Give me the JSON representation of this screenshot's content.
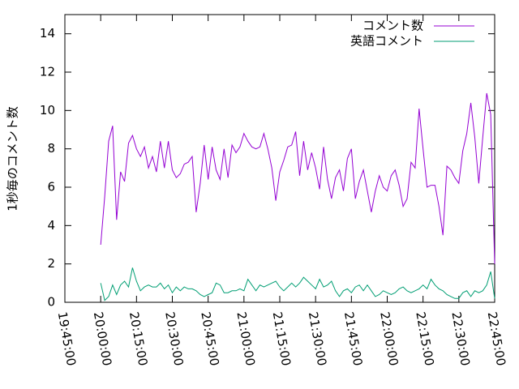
{
  "chart_data": {
    "type": "line",
    "ylabel": "1秒毎のコメント数",
    "x": [
      "20:00:00",
      "20:01:40",
      "20:03:20",
      "20:05:00",
      "20:06:40",
      "20:08:20",
      "20:10:00",
      "20:11:40",
      "20:13:20",
      "20:15:00",
      "20:16:40",
      "20:18:20",
      "20:20:00",
      "20:21:40",
      "20:23:20",
      "20:25:00",
      "20:26:40",
      "20:28:20",
      "20:30:00",
      "20:31:40",
      "20:33:20",
      "20:35:00",
      "20:36:40",
      "20:38:20",
      "20:40:00",
      "20:41:40",
      "20:43:20",
      "20:45:00",
      "20:46:40",
      "20:48:20",
      "20:50:00",
      "20:51:40",
      "20:53:20",
      "20:55:00",
      "20:56:40",
      "20:58:20",
      "21:00:00",
      "21:01:40",
      "21:03:20",
      "21:05:00",
      "21:06:40",
      "21:08:20",
      "21:10:00",
      "21:11:40",
      "21:13:20",
      "21:15:00",
      "21:16:40",
      "21:18:20",
      "21:20:00",
      "21:21:40",
      "21:23:20",
      "21:25:00",
      "21:26:40",
      "21:28:20",
      "21:30:00",
      "21:31:40",
      "21:33:20",
      "21:35:00",
      "21:36:40",
      "21:38:20",
      "21:40:00",
      "21:41:40",
      "21:43:20",
      "21:45:00",
      "21:46:40",
      "21:48:20",
      "21:50:00",
      "21:51:40",
      "21:53:20",
      "21:55:00",
      "21:56:40",
      "21:58:20",
      "22:00:00",
      "22:01:40",
      "22:03:20",
      "22:05:00",
      "22:06:40",
      "22:08:20",
      "22:10:00",
      "22:11:40",
      "22:13:20",
      "22:15:00",
      "22:16:40",
      "22:18:20",
      "22:20:00",
      "22:21:40",
      "22:23:20",
      "22:25:00",
      "22:26:40",
      "22:28:20",
      "22:30:00",
      "22:31:40",
      "22:33:20",
      "22:35:00",
      "22:36:40",
      "22:38:20",
      "22:40:00",
      "22:41:40",
      "22:43:20",
      "22:45:00"
    ],
    "series": [
      {
        "name": "コメント数",
        "color": "#9400d3",
        "values": [
          3.0,
          5.5,
          8.4,
          9.2,
          4.3,
          6.8,
          6.3,
          8.3,
          8.7,
          8.0,
          7.6,
          8.1,
          7.0,
          7.6,
          6.8,
          8.4,
          7.0,
          8.4,
          6.9,
          6.5,
          6.7,
          7.2,
          7.3,
          7.6,
          4.7,
          6.2,
          8.2,
          6.4,
          8.1,
          6.9,
          6.4,
          8.0,
          6.5,
          8.2,
          7.8,
          8.1,
          8.8,
          8.4,
          8.1,
          8.0,
          8.1,
          8.8,
          8.0,
          7.0,
          5.3,
          6.8,
          7.4,
          8.1,
          8.2,
          8.9,
          6.6,
          8.4,
          6.9,
          7.8,
          7.0,
          5.9,
          8.1,
          6.4,
          5.4,
          6.5,
          6.9,
          5.8,
          7.5,
          8.0,
          5.4,
          6.3,
          6.9,
          5.8,
          4.7,
          5.8,
          6.6,
          6.0,
          5.8,
          6.6,
          6.9,
          6.1,
          5.0,
          5.4,
          7.3,
          7.0,
          10.1,
          8.0,
          6.0,
          6.1,
          6.1,
          5.0,
          3.5,
          7.1,
          6.9,
          6.5,
          6.2,
          7.9,
          8.8,
          10.4,
          8.6,
          6.2,
          8.6,
          10.9,
          9.8,
          2.0
        ]
      },
      {
        "name": "英語コメント",
        "color": "#009e73",
        "values": [
          1.0,
          0.1,
          0.3,
          0.9,
          0.4,
          0.9,
          1.1,
          0.8,
          1.8,
          1.1,
          0.6,
          0.8,
          0.9,
          0.8,
          0.8,
          1.0,
          0.7,
          0.9,
          0.5,
          0.8,
          0.6,
          0.8,
          0.7,
          0.7,
          0.6,
          0.4,
          0.3,
          0.4,
          0.5,
          1.0,
          0.9,
          0.5,
          0.5,
          0.6,
          0.6,
          0.7,
          0.6,
          1.2,
          0.9,
          0.6,
          0.9,
          0.8,
          0.9,
          1.0,
          1.1,
          0.8,
          0.6,
          0.8,
          1.0,
          0.8,
          1.0,
          1.3,
          1.1,
          0.9,
          0.7,
          1.2,
          0.8,
          0.9,
          1.1,
          0.6,
          0.3,
          0.6,
          0.7,
          0.5,
          0.8,
          0.9,
          0.6,
          0.9,
          0.6,
          0.3,
          0.4,
          0.6,
          0.5,
          0.4,
          0.5,
          0.7,
          0.8,
          0.6,
          0.5,
          0.6,
          0.7,
          0.9,
          0.7,
          1.2,
          0.9,
          0.7,
          0.6,
          0.4,
          0.3,
          0.2,
          0.2,
          0.5,
          0.6,
          0.3,
          0.6,
          0.5,
          0.6,
          0.9,
          1.6,
          0.2
        ]
      }
    ],
    "xlim": [
      "19:45:00",
      "22:45:00"
    ],
    "xticks": [
      "19:45:00",
      "20:00:00",
      "20:15:00",
      "20:30:00",
      "20:45:00",
      "21:00:00",
      "21:15:00",
      "21:30:00",
      "21:45:00",
      "22:00:00",
      "22:15:00",
      "22:30:00",
      "22:45:00"
    ],
    "ylim": [
      0,
      15
    ],
    "yticks": [
      0,
      2,
      4,
      6,
      8,
      10,
      12,
      14
    ],
    "legend": "top-right"
  }
}
